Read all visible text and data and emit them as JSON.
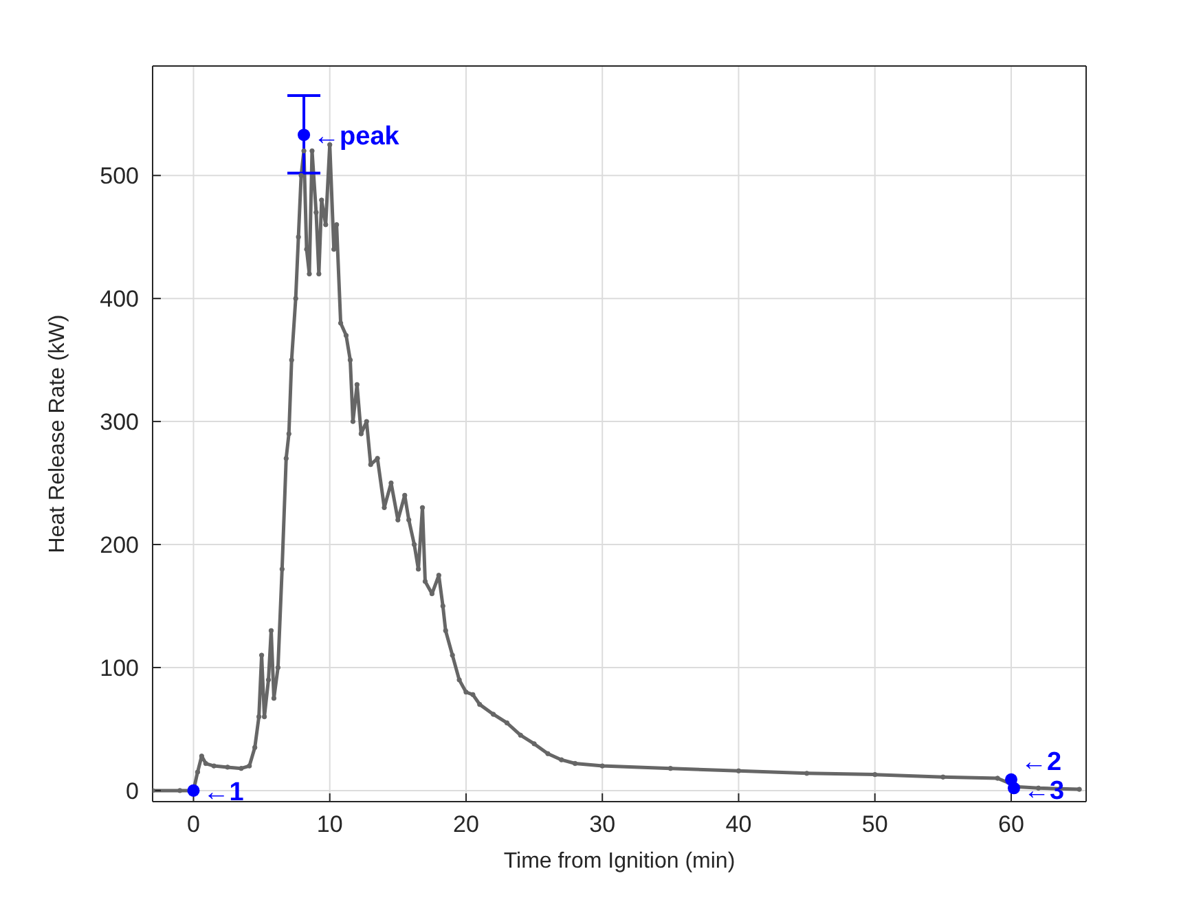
{
  "chart_data": {
    "type": "line",
    "xlabel": "Time from Ignition (min)",
    "ylabel": "Heat Release Rate (kW)",
    "xlim": [
      -3,
      65.5
    ],
    "ylim": [
      -9,
      589
    ],
    "xticks": [
      0,
      10,
      20,
      30,
      40,
      50,
      60
    ],
    "yticks": [
      0,
      100,
      200,
      300,
      400,
      500
    ],
    "grid": true,
    "legend": false,
    "series": [
      {
        "color": "#666666",
        "marker": "circle",
        "x": [
          -3,
          -1,
          0,
          0.3,
          0.6,
          0.9,
          1.5,
          2.5,
          3.5,
          4.1,
          4.5,
          4.8,
          5.0,
          5.2,
          5.5,
          5.7,
          5.9,
          6.2,
          6.5,
          6.8,
          7.0,
          7.2,
          7.5,
          7.7,
          7.9,
          8.1,
          8.3,
          8.5,
          8.7,
          9.0,
          9.2,
          9.4,
          9.7,
          10.0,
          10.3,
          10.5,
          10.8,
          11.2,
          11.5,
          11.7,
          12,
          12.3,
          12.7,
          13,
          13.5,
          14,
          14.5,
          15,
          15.5,
          15.8,
          16.2,
          16.5,
          16.8,
          17,
          17.5,
          18,
          18.3,
          18.5,
          19,
          19.5,
          20,
          20.5,
          21,
          22,
          23,
          24,
          25,
          26,
          27,
          28,
          30,
          35,
          40,
          45,
          50,
          55,
          59,
          60.5,
          62,
          65
        ],
        "values": [
          0,
          0,
          0,
          15,
          28,
          22,
          20,
          19,
          18,
          20,
          35,
          60,
          110,
          60,
          90,
          130,
          75,
          100,
          180,
          270,
          290,
          350,
          400,
          450,
          500,
          520,
          440,
          420,
          520,
          470,
          420,
          480,
          460,
          525,
          440,
          460,
          380,
          370,
          350,
          300,
          330,
          290,
          300,
          265,
          270,
          230,
          250,
          220,
          240,
          220,
          200,
          180,
          230,
          170,
          160,
          175,
          150,
          130,
          110,
          90,
          80,
          78,
          70,
          62,
          55,
          45,
          38,
          30,
          25,
          22,
          20,
          18,
          16,
          14,
          13,
          11,
          10,
          3,
          2,
          1
        ]
      },
      {
        "type": "scatter",
        "color": "#0000ff",
        "marker": "circle",
        "x": [
          0,
          8.1,
          60,
          60.2
        ],
        "values": [
          0,
          533,
          9,
          2
        ],
        "errors": [
          null,
          [
            502,
            565
          ],
          null,
          null
        ]
      }
    ],
    "annotations": [
      {
        "text": "←1",
        "x": 0,
        "y": 0
      },
      {
        "text": "←peak",
        "x": 8.1,
        "y": 533
      },
      {
        "text": "←2",
        "x": 60,
        "y": 9
      },
      {
        "text": "←3",
        "x": 60.2,
        "y": 2
      }
    ]
  }
}
